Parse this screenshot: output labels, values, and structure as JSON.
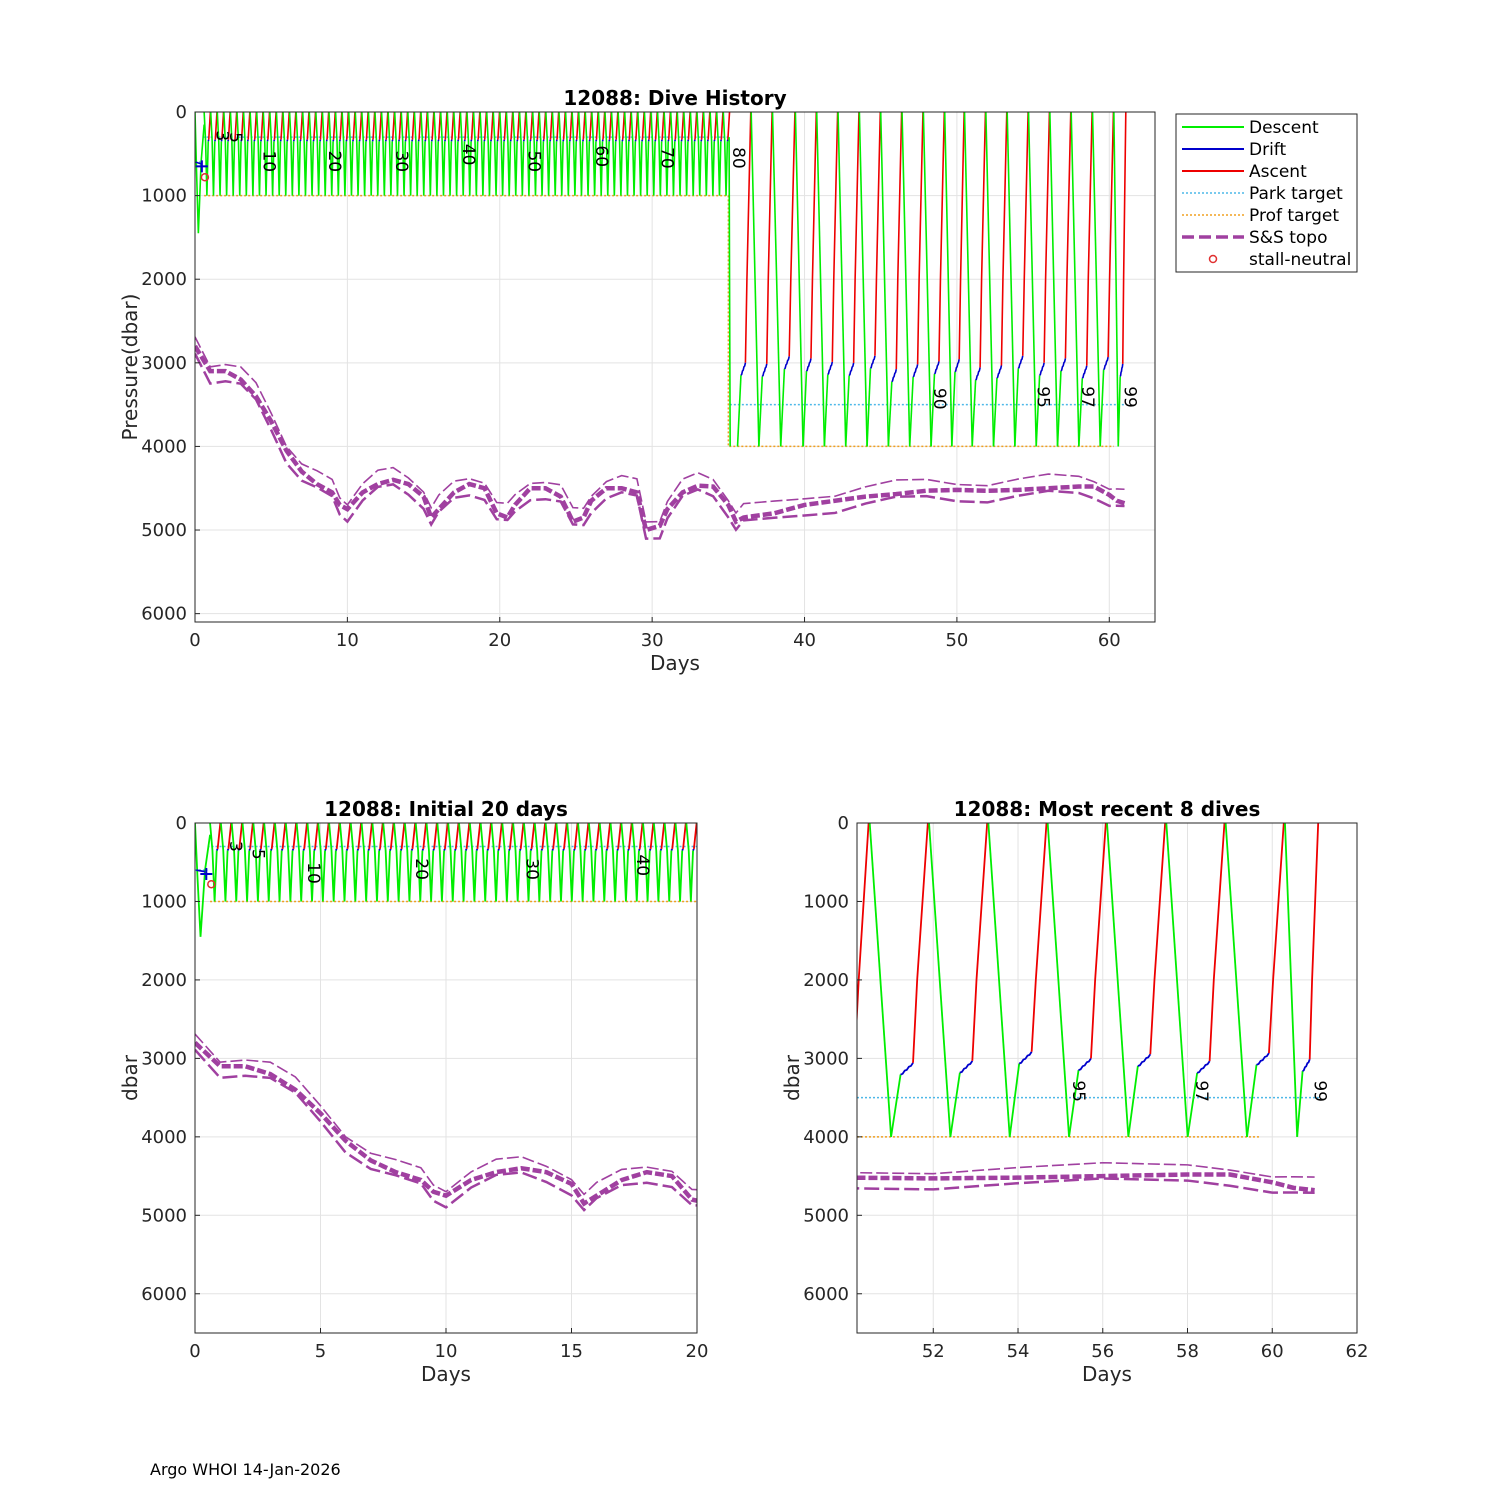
{
  "footer": "Argo WHOI 14-Jan-2026",
  "colors": {
    "descent": "#00ee00",
    "drift": "#0000cc",
    "ascent": "#ee0000",
    "park": "#4db8e8",
    "prof": "#f0a020",
    "topo": "#a040a0",
    "stall": "#e03030"
  },
  "legend": [
    {
      "label": "Descent",
      "style": "descent"
    },
    {
      "label": "Drift",
      "style": "drift"
    },
    {
      "label": "Ascent",
      "style": "ascent"
    },
    {
      "label": "Park target",
      "style": "park"
    },
    {
      "label": "Prof target",
      "style": "prof"
    },
    {
      "label": "S&S topo",
      "style": "topo"
    },
    {
      "label": "stall-neutral",
      "style": "stall"
    }
  ],
  "chart_data": [
    {
      "id": "history",
      "type": "line",
      "title": "12088: Dive History",
      "xlabel": "Days",
      "ylabel": "Pressure(dbar)",
      "xlim": [
        0,
        63
      ],
      "ylim": [
        0,
        6100
      ],
      "xticks": [
        0,
        10,
        20,
        30,
        40,
        50,
        60
      ],
      "yticks": [
        0,
        1000,
        2000,
        3000,
        4000,
        5000,
        6000
      ],
      "early_phase": {
        "start": 0.2,
        "end": 35.1,
        "cycles": 80,
        "park": 300,
        "prof": 1000,
        "drift": 350,
        "first_dive_max": 1450
      },
      "late_phase": {
        "dive_starts": [
          35.1,
          36.5,
          37.9,
          39.4,
          40.8,
          42.2,
          43.6,
          45.0,
          46.4,
          47.8,
          49.2,
          50.5,
          51.9,
          53.3,
          54.7,
          56.1,
          57.5,
          58.9,
          60.3
        ],
        "park": 3500,
        "prof": 4000,
        "drift_min": 3050,
        "drift_max": 3250,
        "end": 61.1
      },
      "cycle_labels": [
        {
          "text": "3",
          "x": 1.4,
          "y": 220
        },
        {
          "text": "5",
          "x": 2.3,
          "y": 240
        },
        {
          "text": "10",
          "x": 4.5,
          "y": 460
        },
        {
          "text": "20",
          "x": 8.8,
          "y": 460
        },
        {
          "text": "30",
          "x": 13.2,
          "y": 460
        },
        {
          "text": "40",
          "x": 17.6,
          "y": 380
        },
        {
          "text": "50",
          "x": 21.9,
          "y": 460
        },
        {
          "text": "60",
          "x": 26.3,
          "y": 400
        },
        {
          "text": "70",
          "x": 30.6,
          "y": 420
        },
        {
          "text": "80",
          "x": 35.3,
          "y": 420
        },
        {
          "text": "90",
          "x": 48.5,
          "y": 3300
        },
        {
          "text": "95",
          "x": 55.3,
          "y": 3280
        },
        {
          "text": "97",
          "x": 58.2,
          "y": 3280
        },
        {
          "text": "99",
          "x": 61.0,
          "y": 3280
        }
      ],
      "topo": {
        "x": [
          0,
          1,
          2,
          3,
          4,
          5,
          6,
          7,
          8,
          9,
          9.5,
          10,
          11,
          12,
          13,
          14,
          15,
          15.5,
          16,
          17,
          18,
          19,
          19.8,
          20.5,
          21,
          22,
          23,
          24,
          24.8,
          25.5,
          26,
          27,
          28,
          29,
          29.6,
          30.5,
          31,
          32,
          33,
          34,
          35,
          35.5,
          36,
          38,
          40,
          42,
          44,
          46,
          48,
          50,
          52,
          54,
          56,
          58,
          59,
          60,
          60.5,
          61
        ],
        "y": [
          2800,
          3100,
          3100,
          3200,
          3400,
          3700,
          4050,
          4300,
          4450,
          4550,
          4700,
          4750,
          4550,
          4450,
          4400,
          4450,
          4600,
          4850,
          4750,
          4550,
          4450,
          4500,
          4800,
          4850,
          4700,
          4500,
          4500,
          4600,
          4900,
          4850,
          4650,
          4500,
          4500,
          4550,
          5000,
          4950,
          4750,
          4550,
          4470,
          4480,
          4700,
          4900,
          4850,
          4800,
          4700,
          4650,
          4600,
          4570,
          4530,
          4520,
          4530,
          4520,
          4500,
          4480,
          4480,
          4580,
          4650,
          4680
        ]
      }
    },
    {
      "id": "initial",
      "type": "line",
      "title": "12088: Initial 20 days",
      "xlabel": "Days",
      "ylabel": "dbar",
      "xlim": [
        0,
        20
      ],
      "ylim": [
        0,
        6500
      ],
      "xticks": [
        0,
        5,
        10,
        15,
        20
      ],
      "yticks": [
        0,
        1000,
        2000,
        3000,
        4000,
        5000,
        6000
      ],
      "cycle_labels": [
        {
          "text": "3",
          "x": 1.4,
          "y": 230
        },
        {
          "text": "5",
          "x": 2.3,
          "y": 330
        },
        {
          "text": "10",
          "x": 4.5,
          "y": 500
        },
        {
          "text": "20",
          "x": 8.8,
          "y": 450
        },
        {
          "text": "30",
          "x": 13.2,
          "y": 450
        },
        {
          "text": "40",
          "x": 17.6,
          "y": 400
        }
      ]
    },
    {
      "id": "recent",
      "type": "line",
      "title": "12088: Most recent 8 dives",
      "xlabel": "Days",
      "ylabel": "dbar",
      "xlim": [
        50.2,
        62
      ],
      "ylim": [
        0,
        6500
      ],
      "xticks": [
        52,
        54,
        56,
        58,
        60,
        62
      ],
      "yticks": [
        0,
        1000,
        2000,
        3000,
        4000,
        5000,
        6000
      ],
      "cycle_labels": [
        {
          "text": "95",
          "x": 55.3,
          "y": 3280
        },
        {
          "text": "97",
          "x": 58.2,
          "y": 3280
        },
        {
          "text": "99",
          "x": 61.0,
          "y": 3280
        }
      ]
    }
  ]
}
